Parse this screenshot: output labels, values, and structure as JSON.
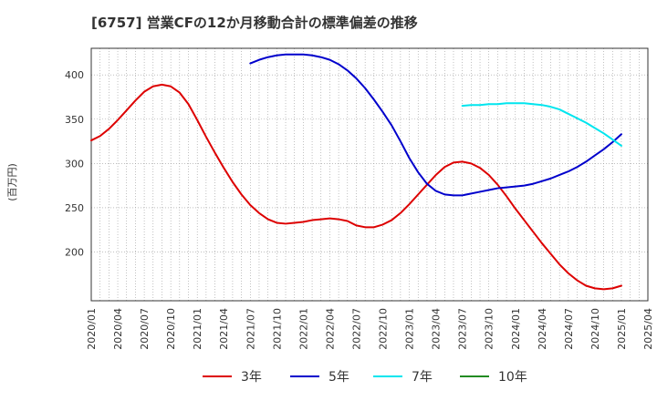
{
  "chart_data": {
    "type": "line",
    "title": "[6757]  営業CFの12か月移動合計の標準偏差の推移",
    "ylabel": "(百万円)",
    "xlabel": "",
    "ylim": [
      145,
      430
    ],
    "yticks": [
      200,
      250,
      300,
      350,
      400
    ],
    "x_ticks": [
      "2020/01",
      "2020/04",
      "2020/07",
      "2020/10",
      "2021/01",
      "2021/04",
      "2021/07",
      "2021/10",
      "2022/01",
      "2022/04",
      "2022/07",
      "2022/10",
      "2023/01",
      "2023/04",
      "2023/07",
      "2023/10",
      "2024/01",
      "2024/04",
      "2024/07",
      "2024/10",
      "2025/01",
      "2025/04"
    ],
    "grid": true,
    "legend_position": "bottom",
    "series": [
      {
        "name": "3年",
        "color": "#dd0000",
        "x": [
          "2020/01",
          "2020/02",
          "2020/03",
          "2020/04",
          "2020/05",
          "2020/06",
          "2020/07",
          "2020/08",
          "2020/09",
          "2020/10",
          "2020/11",
          "2020/12",
          "2021/01",
          "2021/02",
          "2021/03",
          "2021/04",
          "2021/05",
          "2021/06",
          "2021/07",
          "2021/08",
          "2021/09",
          "2021/10",
          "2021/11",
          "2021/12",
          "2022/01",
          "2022/02",
          "2022/03",
          "2022/04",
          "2022/05",
          "2022/06",
          "2022/07",
          "2022/08",
          "2022/09",
          "2022/10",
          "2022/11",
          "2022/12",
          "2023/01",
          "2023/02",
          "2023/03",
          "2023/04",
          "2023/05",
          "2023/06",
          "2023/07",
          "2023/08",
          "2023/09",
          "2023/10",
          "2023/11",
          "2023/12",
          "2024/01",
          "2024/02",
          "2024/03",
          "2024/04",
          "2024/05",
          "2024/06",
          "2024/07",
          "2024/08",
          "2024/09",
          "2024/10",
          "2024/11",
          "2024/12",
          "2025/01"
        ],
        "y": [
          326,
          331,
          339,
          349,
          360,
          371,
          381,
          387,
          389,
          387,
          380,
          367,
          349,
          330,
          312,
          295,
          279,
          265,
          253,
          244,
          237,
          233,
          232,
          233,
          234,
          236,
          237,
          238,
          237,
          235,
          230,
          228,
          228,
          231,
          236,
          244,
          254,
          265,
          276,
          287,
          296,
          301,
          302,
          300,
          295,
          287,
          276,
          263,
          249,
          236,
          223,
          210,
          198,
          186,
          176,
          168,
          162,
          159,
          158,
          159,
          162
        ]
      },
      {
        "name": "5年",
        "color": "#0000cc",
        "x": [
          "2021/07",
          "2021/08",
          "2021/09",
          "2021/10",
          "2021/11",
          "2021/12",
          "2022/01",
          "2022/02",
          "2022/03",
          "2022/04",
          "2022/05",
          "2022/06",
          "2022/07",
          "2022/08",
          "2022/09",
          "2022/10",
          "2022/11",
          "2022/12",
          "2023/01",
          "2023/02",
          "2023/03",
          "2023/04",
          "2023/05",
          "2023/06",
          "2023/07",
          "2023/08",
          "2023/09",
          "2023/10",
          "2023/11",
          "2023/12",
          "2024/01",
          "2024/02",
          "2024/03",
          "2024/04",
          "2024/05",
          "2024/06",
          "2024/07",
          "2024/08",
          "2024/09",
          "2024/10",
          "2024/11",
          "2024/12",
          "2025/01"
        ],
        "y": [
          413,
          417,
          420,
          422,
          423,
          423,
          423,
          422,
          420,
          417,
          412,
          405,
          396,
          385,
          372,
          358,
          343,
          325,
          306,
          290,
          277,
          269,
          265,
          264,
          264,
          266,
          268,
          270,
          272,
          273,
          274,
          275,
          277,
          280,
          283,
          287,
          291,
          296,
          302,
          309,
          316,
          324,
          333
        ]
      },
      {
        "name": "7年",
        "color": "#00e5ee",
        "x": [
          "2023/07",
          "2023/08",
          "2023/09",
          "2023/10",
          "2023/11",
          "2023/12",
          "2024/01",
          "2024/02",
          "2024/03",
          "2024/04",
          "2024/05",
          "2024/06",
          "2024/07",
          "2024/08",
          "2024/09",
          "2024/10",
          "2024/11",
          "2024/12",
          "2025/01"
        ],
        "y": [
          365,
          366,
          366,
          367,
          367,
          368,
          368,
          368,
          367,
          366,
          364,
          361,
          356,
          351,
          346,
          340,
          334,
          327,
          320
        ]
      },
      {
        "name": "10年",
        "color": "#228b22",
        "x": [],
        "y": []
      }
    ]
  }
}
